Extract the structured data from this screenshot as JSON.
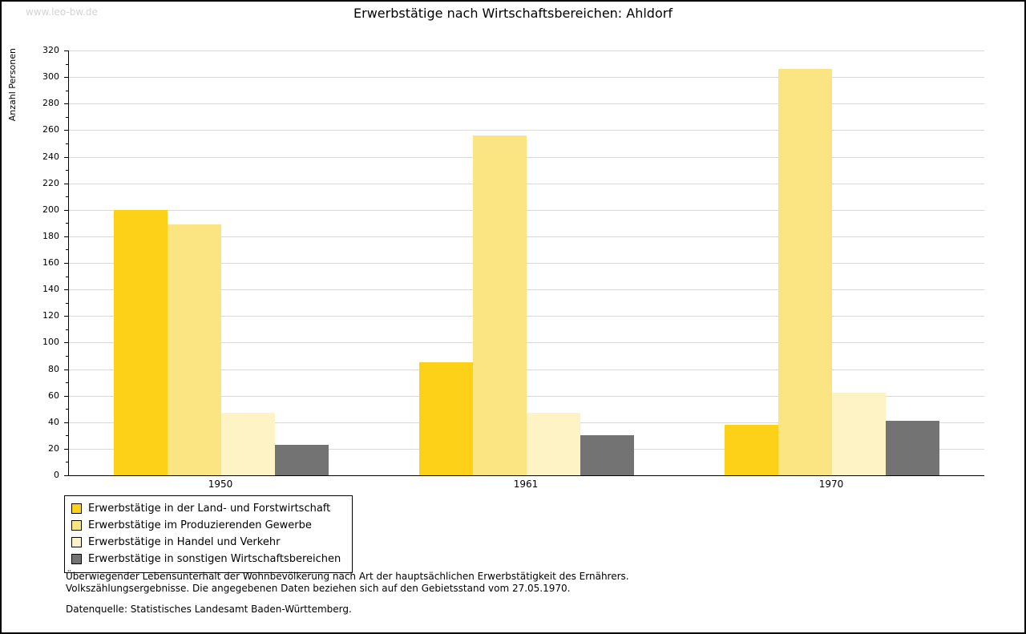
{
  "watermark": "www.leo-bw.de",
  "title": "Erwerbstätige nach Wirtschaftsbereichen: Ahldorf",
  "chart_data": {
    "type": "bar",
    "title": "Erwerbstätige nach Wirtschaftsbereichen: Ahldorf",
    "xlabel": "",
    "ylabel": "Anzahl Personen",
    "categories": [
      "1950",
      "1961",
      "1970"
    ],
    "series": [
      {
        "name": "Erwerbstätige in der Land- und Forstwirtschaft",
        "color": "#FCD118",
        "values": [
          200,
          85,
          38
        ]
      },
      {
        "name": "Erwerbstätige im Produzierenden Gewerbe",
        "color": "#FBE482",
        "values": [
          189,
          256,
          306
        ]
      },
      {
        "name": "Erwerbstätige in Handel und Verkehr",
        "color": "#FDF3C5",
        "values": [
          47,
          47,
          62
        ]
      },
      {
        "name": "Erwerbstätige in sonstigen Wirtschaftsbereichen",
        "color": "#737373",
        "values": [
          23,
          30,
          41
        ]
      }
    ],
    "ylim": [
      0,
      320
    ],
    "ytick_step": 20,
    "grid": true,
    "legend_position": "bottom-left"
  },
  "footer": {
    "line1": "Überwiegender Lebensunterhalt der Wohnbevölkerung nach Art der hauptsächlichen Erwerbstätigkeit des Ernährers.",
    "line2": "Volkszählungsergebnisse. Die angegebenen Daten beziehen sich auf den Gebietsstand vom 27.05.1970.",
    "source": "Datenquelle: Statistisches Landesamt Baden-Württemberg."
  }
}
